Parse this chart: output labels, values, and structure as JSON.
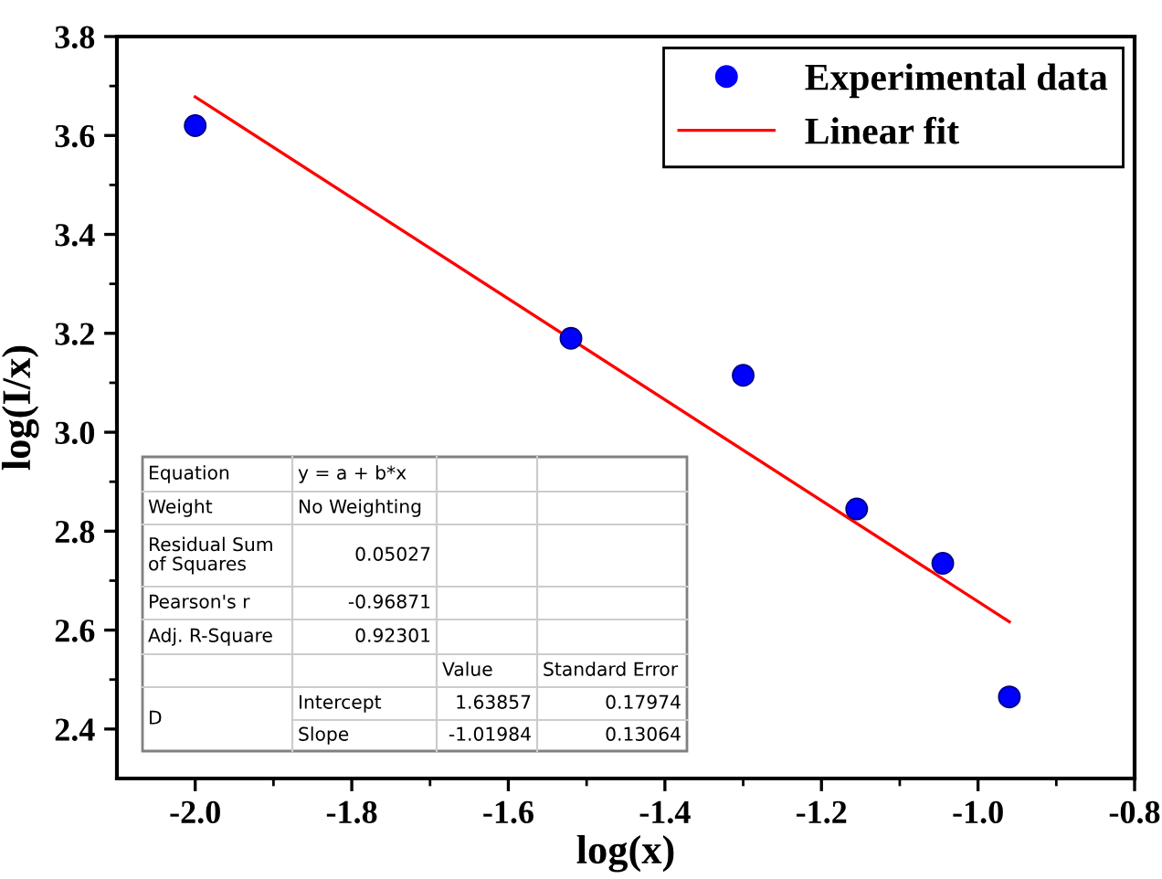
{
  "chart_data": {
    "type": "scatter",
    "xlabel": "log(x)",
    "ylabel": "log(I/x)",
    "xlim": [
      -2.1,
      -0.8
    ],
    "xticks": [
      {
        "value": -2,
        "label": "-2.0"
      },
      -1.8,
      -1.6,
      -1.4,
      -1.2,
      {
        "value": -1,
        "label": "-1.0"
      },
      -0.8
    ],
    "ylim": [
      2.3,
      3.8
    ],
    "yticks": [
      2.4,
      2.6,
      2.8,
      {
        "value": 3,
        "label": "3.0"
      },
      3.2,
      3.4,
      3.6,
      3.8
    ],
    "x": [
      -2.0,
      -1.52,
      -1.3,
      -1.155,
      -1.045,
      -0.96
    ],
    "series": [
      {
        "name": "Experimental data",
        "color": "#0000ff",
        "marker": "circle",
        "values": [
          3.62,
          3.19,
          3.115,
          2.845,
          2.735,
          2.465
        ]
      },
      {
        "name": "Linear fit",
        "type": "line",
        "color": "#ff0000",
        "marker": "none",
        "line_style": "solid",
        "x": [
          -2.0,
          -0.96
        ],
        "values": [
          3.678,
          2.617
        ]
      }
    ],
    "legend": "top right",
    "grid": false,
    "annotations": [
      "Equation",
      "y = a + b*x",
      "Weight",
      "No Weighting",
      "Residual Sum\nof Squares",
      "0.05027",
      "Pearson's r",
      "-0.96871",
      "Adj. R-Square",
      "0.92301",
      "Value",
      "Standard Error",
      "D",
      "Intercept",
      "1.63857",
      "0.17974",
      "Slope",
      "-1.01984",
      "0.13064"
    ]
  }
}
